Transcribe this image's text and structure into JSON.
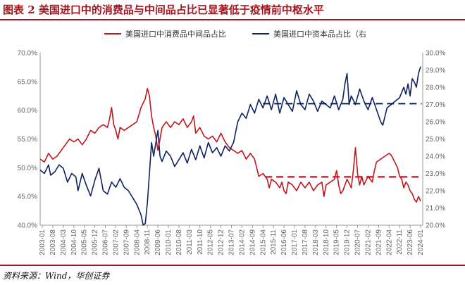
{
  "header": {
    "title": "图表 2  美国进口中的消费品与中间品占比已显著低于疫情前中枢水平"
  },
  "footer": {
    "source": "资料来源：Wind，华创证券"
  },
  "colors": {
    "consumer": "#c0161e",
    "intermediate": "#0f2361",
    "title": "#a6141c"
  },
  "chart_data": {
    "type": "line",
    "title": "图表 2  美国进口中的消费品与中间品占比已显著低于疫情前中枢水平",
    "legend_position": "top",
    "x_tick_labels": [
      "2003-01",
      "2003-08",
      "2004-03",
      "2004-10",
      "2005-05",
      "2005-12",
      "2006-07",
      "2007-02",
      "2007-09",
      "2008-04",
      "2008-11",
      "2009-06",
      "2010-01",
      "2010-08",
      "2011-03",
      "2011-10",
      "2012-05",
      "2012-12",
      "2013-07",
      "2014-02",
      "2014-09",
      "2015-04",
      "2015-11",
      "2016-06",
      "2017-01",
      "2017-08",
      "2018-03",
      "2018-10",
      "2019-05",
      "2019-12",
      "2020-07",
      "2021-02",
      "2021-09",
      "2022-04",
      "2022-11",
      "2023-06",
      "2024-01"
    ],
    "y_left": {
      "min": 40,
      "max": 70,
      "ticks": [
        "40.0%",
        "45.0%",
        "50.0%",
        "55.0%",
        "60.0%",
        "65.0%",
        "70.0%"
      ]
    },
    "y_right": {
      "min": 20,
      "max": 30,
      "ticks": [
        "20.0%",
        "21.0%",
        "22.0%",
        "23.0%",
        "24.0%",
        "25.0%",
        "26.0%",
        "27.0%",
        "28.0%",
        "29.0%",
        "30.0%"
      ]
    },
    "series": [
      {
        "name": "美国进口中消费品中间品占比",
        "axis": "left",
        "style": "solid",
        "values": [
          [
            0,
            51.5
          ],
          [
            4,
            51.0
          ],
          [
            8,
            52.5
          ],
          [
            12,
            51.5
          ],
          [
            16,
            52.0
          ],
          [
            20,
            53.0
          ],
          [
            24,
            54.0
          ],
          [
            28,
            55.0
          ],
          [
            32,
            54.5
          ],
          [
            36,
            55.0
          ],
          [
            40,
            54.0
          ],
          [
            44,
            55.0
          ],
          [
            48,
            56.5
          ],
          [
            52,
            56.0
          ],
          [
            56,
            57.0
          ],
          [
            60,
            57.5
          ],
          [
            64,
            57.0
          ],
          [
            66,
            58.5
          ],
          [
            68,
            60.5
          ],
          [
            70,
            57.5
          ],
          [
            72,
            56.5
          ],
          [
            74,
            55.0
          ],
          [
            76,
            57.0
          ],
          [
            80,
            56.5
          ],
          [
            84,
            57.0
          ],
          [
            88,
            57.5
          ],
          [
            92,
            58.0
          ],
          [
            96,
            60.5
          ],
          [
            100,
            62.0
          ],
          [
            102,
            63.8
          ],
          [
            104,
            62.5
          ],
          [
            106,
            59.0
          ],
          [
            108,
            57.0
          ],
          [
            110,
            55.5
          ],
          [
            112,
            53.0
          ],
          [
            114,
            55.0
          ],
          [
            116,
            57.0
          ],
          [
            118,
            57.5
          ],
          [
            120,
            58.0
          ],
          [
            124,
            57.0
          ],
          [
            128,
            58.0
          ],
          [
            132,
            57.5
          ],
          [
            136,
            58.5
          ],
          [
            140,
            57.0
          ],
          [
            144,
            58.0
          ],
          [
            146,
            59.0
          ],
          [
            148,
            56.0
          ],
          [
            152,
            57.0
          ],
          [
            156,
            55.5
          ],
          [
            160,
            55.0
          ],
          [
            164,
            55.5
          ],
          [
            168,
            54.5
          ],
          [
            172,
            56.0
          ],
          [
            176,
            54.5
          ],
          [
            180,
            53.5
          ],
          [
            184,
            53.0
          ],
          [
            188,
            52.5
          ],
          [
            192,
            53.0
          ],
          [
            196,
            51.5
          ],
          [
            200,
            52.5
          ],
          [
            204,
            51.5
          ],
          [
            206,
            50.0
          ],
          [
            208,
            48.5
          ],
          [
            212,
            49.0
          ],
          [
            216,
            48.0
          ],
          [
            218,
            46.5
          ],
          [
            220,
            48.0
          ],
          [
            224,
            47.5
          ],
          [
            228,
            46.5
          ],
          [
            230,
            47.5
          ],
          [
            232,
            46.0
          ],
          [
            234,
            45.5
          ],
          [
            236,
            47.5
          ],
          [
            240,
            47.0
          ],
          [
            244,
            46.0
          ],
          [
            248,
            47.5
          ],
          [
            252,
            46.5
          ],
          [
            256,
            47.5
          ],
          [
            260,
            46.0
          ],
          [
            264,
            47.0
          ],
          [
            268,
            47.5
          ],
          [
            270,
            45.0
          ],
          [
            272,
            47.0
          ],
          [
            276,
            47.5
          ],
          [
            280,
            48.0
          ],
          [
            282,
            49.5
          ],
          [
            284,
            47.0
          ],
          [
            286,
            45.5
          ],
          [
            288,
            46.0
          ],
          [
            292,
            48.0
          ],
          [
            296,
            46.5
          ],
          [
            298,
            49.5
          ],
          [
            300,
            53.5
          ],
          [
            302,
            49.0
          ],
          [
            304,
            47.0
          ],
          [
            306,
            48.5
          ],
          [
            308,
            47.0
          ],
          [
            312,
            48.5
          ],
          [
            316,
            47.5
          ],
          [
            318,
            49.5
          ],
          [
            320,
            51.0
          ],
          [
            324,
            51.5
          ],
          [
            328,
            52.0
          ],
          [
            332,
            52.5
          ],
          [
            334,
            52.2
          ],
          [
            336,
            51.5
          ],
          [
            340,
            50.0
          ],
          [
            342,
            48.5
          ],
          [
            344,
            48.0
          ],
          [
            346,
            46.5
          ],
          [
            348,
            47.5
          ],
          [
            350,
            47.0
          ],
          [
            352,
            46.0
          ],
          [
            354,
            45.5
          ],
          [
            356,
            44.5
          ],
          [
            358,
            44.0
          ],
          [
            360,
            45.0
          ],
          [
            362,
            44.2
          ]
        ]
      },
      {
        "name": "美国进口中资本品占比（右",
        "axis": "right",
        "style": "solid",
        "values": [
          [
            0,
            23.2
          ],
          [
            4,
            23.0
          ],
          [
            8,
            23.5
          ],
          [
            10,
            22.9
          ],
          [
            14,
            23.1
          ],
          [
            18,
            23.5
          ],
          [
            22,
            23.3
          ],
          [
            26,
            22.5
          ],
          [
            30,
            23.0
          ],
          [
            34,
            22.8
          ],
          [
            36,
            22.0
          ],
          [
            40,
            23.0
          ],
          [
            44,
            22.3
          ],
          [
            48,
            21.7
          ],
          [
            52,
            22.6
          ],
          [
            56,
            23.3
          ],
          [
            60,
            22.0
          ],
          [
            64,
            21.8
          ],
          [
            68,
            22.5
          ],
          [
            72,
            22.2
          ],
          [
            76,
            22.7
          ],
          [
            80,
            22.2
          ],
          [
            84,
            22.0
          ],
          [
            88,
            21.6
          ],
          [
            92,
            21.2
          ],
          [
            96,
            20.6
          ],
          [
            98,
            20.0
          ],
          [
            100,
            20.1
          ],
          [
            102,
            21.3
          ],
          [
            104,
            23.0
          ],
          [
            106,
            24.8
          ],
          [
            108,
            24.0
          ],
          [
            112,
            25.5
          ],
          [
            114,
            24.0
          ],
          [
            116,
            23.7
          ],
          [
            120,
            24.3
          ],
          [
            124,
            24.0
          ],
          [
            128,
            23.4
          ],
          [
            132,
            23.8
          ],
          [
            136,
            24.2
          ],
          [
            140,
            23.6
          ],
          [
            144,
            24.4
          ],
          [
            148,
            23.8
          ],
          [
            152,
            24.6
          ],
          [
            156,
            23.9
          ],
          [
            160,
            24.8
          ],
          [
            164,
            24.2
          ],
          [
            168,
            24.5
          ],
          [
            172,
            24.0
          ],
          [
            176,
            24.6
          ],
          [
            180,
            24.3
          ],
          [
            184,
            24.8
          ],
          [
            186,
            25.4
          ],
          [
            188,
            26.0
          ],
          [
            192,
            26.5
          ],
          [
            196,
            26.2
          ],
          [
            200,
            27.0
          ],
          [
            204,
            26.5
          ],
          [
            208,
            27.3
          ],
          [
            212,
            26.8
          ],
          [
            216,
            27.5
          ],
          [
            220,
            26.7
          ],
          [
            224,
            27.6
          ],
          [
            228,
            26.5
          ],
          [
            232,
            27.4
          ],
          [
            236,
            27.0
          ],
          [
            240,
            26.6
          ],
          [
            244,
            27.8
          ],
          [
            248,
            27.0
          ],
          [
            252,
            26.7
          ],
          [
            256,
            27.6
          ],
          [
            260,
            27.2
          ],
          [
            264,
            26.6
          ],
          [
            268,
            27.2
          ],
          [
            272,
            27.0
          ],
          [
            276,
            26.8
          ],
          [
            280,
            27.5
          ],
          [
            284,
            26.7
          ],
          [
            288,
            27.3
          ],
          [
            290,
            28.2
          ],
          [
            292,
            28.8
          ],
          [
            294,
            27.0
          ],
          [
            296,
            27.5
          ],
          [
            300,
            27.0
          ],
          [
            304,
            27.9
          ],
          [
            308,
            27.2
          ],
          [
            312,
            26.7
          ],
          [
            316,
            27.4
          ],
          [
            320,
            26.7
          ],
          [
            324,
            26.0
          ],
          [
            326,
            25.8
          ],
          [
            330,
            26.8
          ],
          [
            334,
            27.0
          ],
          [
            338,
            27.2
          ],
          [
            342,
            27.4
          ],
          [
            346,
            28.0
          ],
          [
            348,
            27.6
          ],
          [
            350,
            28.2
          ],
          [
            352,
            27.5
          ],
          [
            354,
            28.5
          ],
          [
            356,
            28.3
          ],
          [
            358,
            28.0
          ],
          [
            360,
            28.8
          ],
          [
            362,
            29.2
          ]
        ]
      },
      {
        "name": "",
        "axis": "left",
        "style": "dashed",
        "values": [
          [
            214,
            48.4
          ],
          [
            363,
            48.4
          ]
        ]
      },
      {
        "name": "",
        "axis": "right",
        "style": "dashed",
        "values": [
          [
            212,
            27.05
          ],
          [
            363,
            27.05
          ]
        ]
      }
    ],
    "x_max": 364
  }
}
